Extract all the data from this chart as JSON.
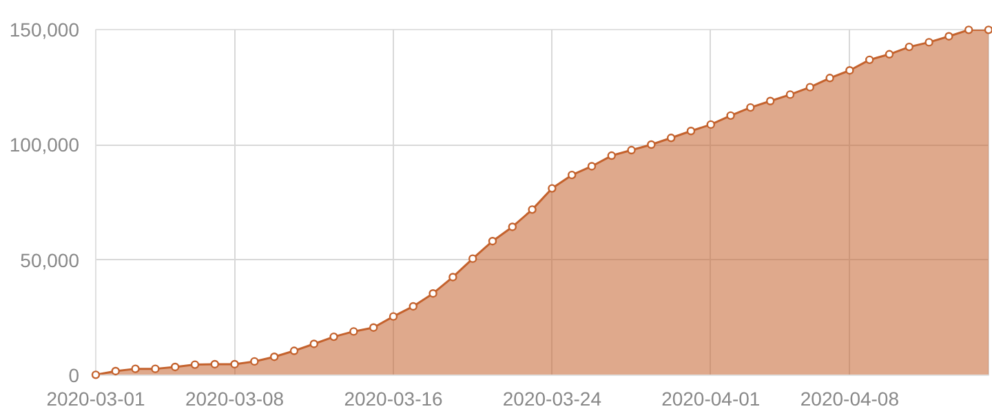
{
  "chart_data": {
    "type": "area",
    "x": [
      "2020-03-01",
      "2020-03-02",
      "2020-03-03",
      "2020-03-04",
      "2020-03-05",
      "2020-03-06",
      "2020-03-07",
      "2020-03-08",
      "2020-03-09",
      "2020-03-10",
      "2020-03-11",
      "2020-03-12",
      "2020-03-13",
      "2020-03-14",
      "2020-03-15",
      "2020-03-16",
      "2020-03-17",
      "2020-03-18",
      "2020-03-19",
      "2020-03-20",
      "2020-03-21",
      "2020-03-22",
      "2020-03-23",
      "2020-03-24",
      "2020-03-25",
      "2020-03-26",
      "2020-03-27",
      "2020-03-28",
      "2020-03-29",
      "2020-03-30",
      "2020-03-31",
      "2020-04-01",
      "2020-04-02",
      "2020-04-03",
      "2020-04-04",
      "2020-04-05",
      "2020-04-06",
      "2020-04-07",
      "2020-04-08",
      "2020-04-09",
      "2020-04-10",
      "2020-04-11",
      "2020-04-12",
      "2020-04-13",
      "2020-04-14",
      "2020-04-15"
    ],
    "series": [
      {
        "color": "#c4622d",
        "values": [
          200,
          1800,
          2800,
          2800,
          3600,
          4600,
          4800,
          4800,
          6000,
          8000,
          10600,
          13600,
          16700,
          19000,
          20700,
          25500,
          29900,
          35500,
          42600,
          50600,
          58200,
          64400,
          71900,
          81100,
          86900,
          90700,
          95300,
          97700,
          100100,
          103000,
          106000,
          108800,
          112700,
          116200,
          119000,
          121800,
          125000,
          129000,
          132300,
          136900,
          139300,
          142500,
          144500,
          147100,
          149900,
          149900
        ]
      }
    ],
    "xlim": [
      "2020-03-01",
      "2020-04-15"
    ],
    "xticks": [
      "2020-03-01",
      "2020-03-08",
      "2020-03-16",
      "2020-03-24",
      "2020-04-01",
      "2020-04-08"
    ],
    "ylim": [
      0,
      150000
    ],
    "yticks": [
      {
        "value": 0,
        "label": "0"
      },
      {
        "value": 50000,
        "label": "50,000"
      },
      {
        "value": 100000,
        "label": "100,000"
      },
      {
        "value": 150000,
        "label": "150,000"
      }
    ],
    "grid": true,
    "marker": "circle",
    "line_style": "solid"
  }
}
